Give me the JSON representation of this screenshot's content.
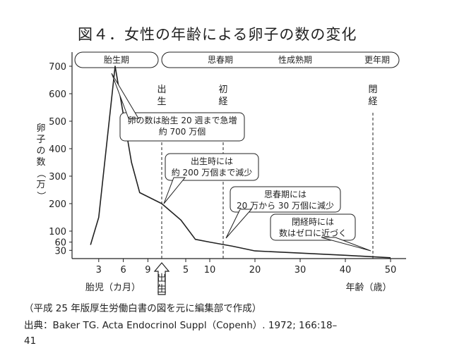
{
  "chart_data": {
    "type": "line",
    "title": "図４．女性の年齢による卵子の数の変化",
    "ylabel": "卵子の数（万）",
    "y_ticks": [
      700,
      600,
      500,
      400,
      300,
      200,
      100,
      60,
      30
    ],
    "ylim": [
      0,
      730
    ],
    "x_axis": {
      "fetal_label": "胎児（カ月）",
      "fetal_ticks": [
        "3",
        "6",
        "9"
      ],
      "age_label": "年齢（歳）",
      "age_ticks": [
        "5",
        "10",
        "20",
        "30",
        "40",
        "50"
      ],
      "birth_marker": "出生"
    },
    "series": [
      {
        "points": [
          {
            "x": "胎児2カ月",
            "y": 50
          },
          {
            "x": "胎児3カ月",
            "y": 150
          },
          {
            "x": "胎児5カ月",
            "y": 700
          },
          {
            "x": "胎児7カ月",
            "y": 350
          },
          {
            "x": "胎児8カ月",
            "y": 240
          },
          {
            "x": "出生",
            "y": 200
          },
          {
            "x": "4歳",
            "y": 140
          },
          {
            "x": "7歳",
            "y": 70
          },
          {
            "x": "10歳",
            "y": 60
          },
          {
            "x": "15歳",
            "y": 45
          },
          {
            "x": "20歳",
            "y": 28
          },
          {
            "x": "30歳",
            "y": 20
          },
          {
            "x": "40歳",
            "y": 12
          },
          {
            "x": "50歳",
            "y": 3
          }
        ]
      }
    ],
    "phases": [
      "胎生期",
      "思春期",
      "性成熟期",
      "更年期"
    ],
    "markers": [
      {
        "label": "出生"
      },
      {
        "label": "初経"
      },
      {
        "label": "閉経"
      }
    ],
    "annotations": [
      {
        "lines": [
          "卵の数は胎生 20 週まで急増",
          "約 700 万個"
        ]
      },
      {
        "lines": [
          "出生時には",
          "約 200 万個まで減少"
        ]
      },
      {
        "lines": [
          "思春期には",
          "20 万から 30 万個に減少"
        ]
      },
      {
        "lines": [
          "閉経時には",
          "数はゼロに近づく"
        ]
      }
    ]
  },
  "footnote": {
    "source_line": "（平成 25 年版厚生労働白書の図を元に編集部で作成）",
    "citation_line1": "出典：Baker TG. Acta Endocrinol Suppl（Copenh）. 1972; 166:18–",
    "citation_line2": "41"
  }
}
